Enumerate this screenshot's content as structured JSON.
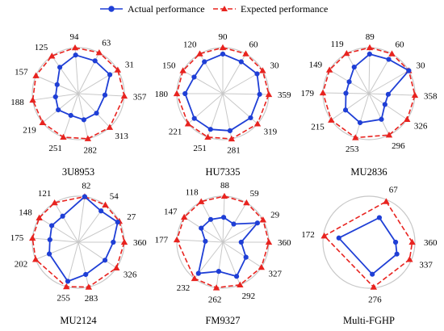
{
  "legend": {
    "actual_label": "Actual performance",
    "expected_label": "Expected performance",
    "actual_color": "#1f3fd6",
    "expected_color": "#e8231f"
  },
  "chart_data": [
    {
      "type": "radar",
      "title": "3U8953",
      "angle_labels": [
        "94",
        "63",
        "31",
        "357",
        "313",
        "282",
        "251",
        "219",
        "188",
        "157",
        "125"
      ],
      "angles_deg": [
        94,
        63,
        31,
        357,
        313,
        282,
        251,
        219,
        188,
        157,
        125
      ],
      "actual": [
        0.84,
        0.8,
        0.8,
        0.58,
        0.58,
        0.58,
        0.5,
        0.56,
        0.5,
        0.5,
        0.7
      ],
      "expected": [
        1.0,
        1.0,
        1.0,
        1.0,
        1.0,
        1.0,
        1.0,
        1.0,
        1.0,
        1.0,
        1.0
      ],
      "rmax": 1.0,
      "grid": "circle-and-spokes"
    },
    {
      "type": "radar",
      "title": "HU7335",
      "angle_labels": [
        "90",
        "60",
        "30",
        "359",
        "319",
        "281",
        "251",
        "221",
        "180",
        "150",
        "120"
      ],
      "angles_deg": [
        90,
        60,
        30,
        359,
        319,
        281,
        251,
        221,
        180,
        150,
        120
      ],
      "actual": [
        0.86,
        0.8,
        0.86,
        0.8,
        0.8,
        0.82,
        0.82,
        0.82,
        0.82,
        0.72,
        0.8
      ],
      "expected": [
        1.0,
        1.0,
        1.0,
        1.0,
        1.0,
        1.0,
        1.0,
        1.0,
        1.0,
        1.0,
        1.0
      ],
      "rmax": 1.0,
      "grid": "circle-and-spokes"
    },
    {
      "type": "radar",
      "title": "MU2836",
      "angle_labels": [
        "89",
        "60",
        "30",
        "358",
        "326",
        "296",
        "253",
        "215",
        "179",
        "149",
        "119"
      ],
      "angles_deg": [
        89,
        60,
        30,
        358,
        326,
        296,
        253,
        215,
        179,
        149,
        119
      ],
      "actual": [
        0.86,
        0.86,
        1.0,
        0.42,
        0.42,
        0.62,
        0.66,
        0.62,
        0.5,
        0.5,
        0.66
      ],
      "expected": [
        1.0,
        1.0,
        1.0,
        1.0,
        1.0,
        1.0,
        1.0,
        1.0,
        1.0,
        1.0,
        1.0
      ],
      "rmax": 1.0,
      "grid": "circle-and-spokes"
    },
    {
      "type": "radar",
      "title": "MU2124",
      "angle_labels": [
        "82",
        "54",
        "27",
        "360",
        "326",
        "283",
        "255",
        "202",
        "175",
        "148",
        "121"
      ],
      "angles_deg": [
        82,
        54,
        27,
        360,
        326,
        283,
        255,
        202,
        175,
        148,
        121
      ],
      "actual": [
        1.0,
        0.84,
        0.96,
        0.76,
        0.7,
        0.72,
        0.88,
        0.68,
        0.62,
        0.68,
        0.66
      ],
      "expected": [
        1.0,
        1.0,
        1.0,
        1.0,
        1.0,
        1.0,
        1.0,
        1.0,
        1.0,
        1.0,
        1.0
      ],
      "rmax": 1.0,
      "grid": "circle-and-spokes"
    },
    {
      "type": "radar",
      "title": "FM9327",
      "angle_labels": [
        "88",
        "59",
        "29",
        "360",
        "327",
        "292",
        "262",
        "232",
        "177",
        "147",
        "118"
      ],
      "angles_deg": [
        88,
        59,
        29,
        360,
        327,
        292,
        262,
        232,
        177,
        147,
        118
      ],
      "actual": [
        0.54,
        0.46,
        0.86,
        0.4,
        0.6,
        0.8,
        0.64,
        0.86,
        0.38,
        0.56,
        0.56
      ],
      "expected": [
        1.0,
        1.0,
        1.0,
        1.0,
        1.0,
        1.0,
        1.0,
        1.0,
        1.0,
        1.0,
        1.0
      ],
      "rmax": 1.0,
      "grid": "circle-and-spokes"
    },
    {
      "type": "radar",
      "title": "Multi-FGHP",
      "angle_labels": [
        "67",
        "360",
        "337",
        "276",
        "172"
      ],
      "angles_deg": [
        67,
        360,
        337,
        276,
        172
      ],
      "actual": [
        0.58,
        0.58,
        0.66,
        0.7,
        0.66
      ],
      "expected": [
        0.96,
        0.94,
        0.96,
        0.98,
        0.98
      ],
      "rmax": 1.0,
      "grid": "circle-only"
    }
  ]
}
